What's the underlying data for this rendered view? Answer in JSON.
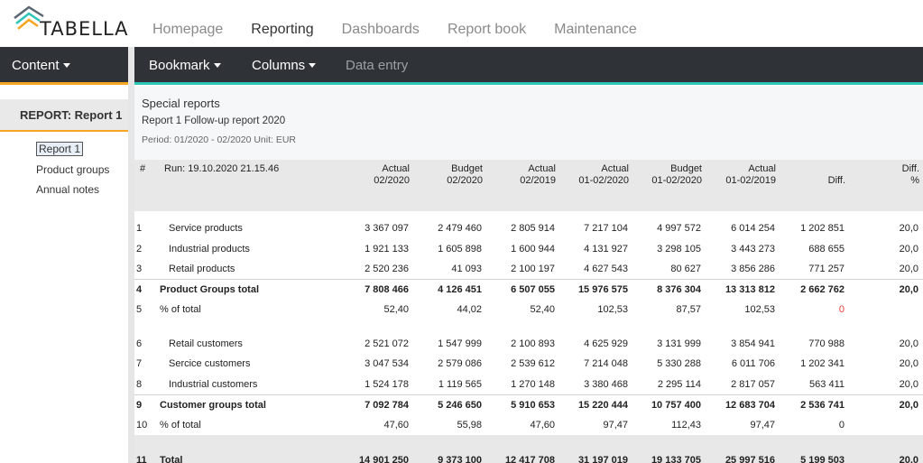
{
  "app": {
    "logo_text": "TABELLA"
  },
  "topnav": [
    "Homepage",
    "Reporting",
    "Dashboards",
    "Report book",
    "Maintenance"
  ],
  "content_menu": {
    "label": "Content"
  },
  "toolbar": {
    "bookmark": "Bookmark",
    "columns": "Columns",
    "data_entry": "Data entry"
  },
  "left_panel": {
    "report_title": "REPORT: Report 1",
    "links": [
      "Report 1",
      "Product groups",
      "Annual notes"
    ]
  },
  "report": {
    "title": "Special reports",
    "subtitle": "Report 1 Follow-up report 2020",
    "period": "Period: 01/2020 - 02/2020 Unit: EUR"
  },
  "table": {
    "hash": "#",
    "run": "Run: 19.10.2020 21.15.46",
    "columns": [
      [
        "Actual",
        "02/2020"
      ],
      [
        "Budget",
        "02/2020"
      ],
      [
        "Actual",
        "02/2019"
      ],
      [
        "Actual",
        "01-02/2020"
      ],
      [
        "Budget",
        "01-02/2020"
      ],
      [
        "Actual",
        "01-02/2019"
      ],
      [
        "",
        "Diff."
      ],
      [
        "Diff.",
        "%"
      ]
    ],
    "rows": [
      {
        "idx": "1",
        "label": "Service products",
        "values": [
          "3 367 097",
          "2 479 460",
          "2 805 914",
          "7 217 104",
          "4 997 572",
          "6 014 254",
          "1 202 851",
          "20,0"
        ]
      },
      {
        "idx": "2",
        "label": "Industrial products",
        "values": [
          "1 921 133",
          "1 605 898",
          "1 600 944",
          "4 131 927",
          "3 298 105",
          "3 443 273",
          "688 655",
          "20,0"
        ]
      },
      {
        "idx": "3",
        "label": "Retail products",
        "values": [
          "2 520 236",
          "41 093",
          "2 100 197",
          "4 627 543",
          "80 627",
          "3 856 286",
          "771 257",
          "20,0"
        ]
      },
      {
        "idx": "4",
        "label": "Product Groups total",
        "values": [
          "7 808 466",
          "4 126 451",
          "6 507 055",
          "15 976 575",
          "8 376 304",
          "13 313 812",
          "2 662 762",
          "20,0"
        ]
      },
      {
        "idx": "5",
        "label": "% of total",
        "values": [
          "52,40",
          "44,02",
          "52,40",
          "102,53",
          "87,57",
          "102,53",
          "0",
          ""
        ]
      },
      {
        "idx": "6",
        "label": "Retail customers",
        "values": [
          "2 521 072",
          "1 547 999",
          "2 100 893",
          "4 625 929",
          "3 131 999",
          "3 854 941",
          "770 988",
          "20,0"
        ]
      },
      {
        "idx": "7",
        "label": "Sercice customers",
        "values": [
          "3 047 534",
          "2 579 086",
          "2 539 612",
          "7 214 048",
          "5 330 288",
          "6 011 706",
          "1 202 341",
          "20,0"
        ]
      },
      {
        "idx": "8",
        "label": "Industrial customers",
        "values": [
          "1 524 178",
          "1 119 565",
          "1 270 148",
          "3 380 468",
          "2 295 114",
          "2 817 057",
          "563 411",
          "20,0"
        ]
      },
      {
        "idx": "9",
        "label": "Customer groups total",
        "values": [
          "7 092 784",
          "5 246 650",
          "5 910 653",
          "15 220 444",
          "10 757 400",
          "12 683 704",
          "2 536 741",
          "20,0"
        ]
      },
      {
        "idx": "10",
        "label": "% of total",
        "values": [
          "47,60",
          "55,98",
          "47,60",
          "97,47",
          "112,43",
          "97,47",
          "0",
          ""
        ]
      },
      {
        "idx": "11",
        "label": "Total",
        "values": [
          "14 901 250",
          "9 373 100",
          "12 417 708",
          "31 197 019",
          "19 133 705",
          "25 997 516",
          "5 199 503",
          "20,0"
        ]
      }
    ]
  },
  "colors": {
    "accent_orange": "#f5a623",
    "accent_teal": "#2ec4b6",
    "dark_bar": "#2f3337",
    "negative_red": "#e53935"
  }
}
